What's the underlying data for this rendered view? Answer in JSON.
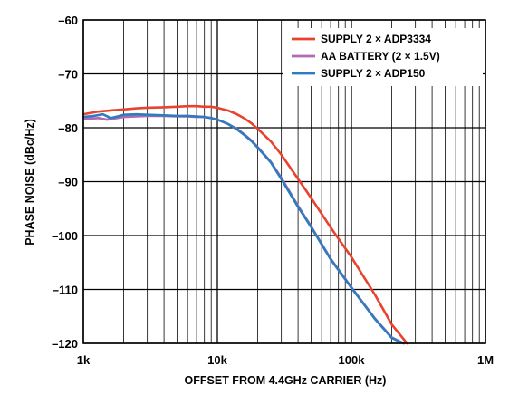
{
  "chart_data": {
    "type": "line",
    "title": "",
    "xlabel": "OFFSET FROM 4.4GHz CARRIER (Hz)",
    "ylabel": "PHASE NOISE (dBc/Hz)",
    "xscale": "log",
    "xlim": [
      1000,
      1000000
    ],
    "ylim": [
      -120,
      -60
    ],
    "grid": true,
    "legend_position": "top-right",
    "x_tick_labels": [
      "1k",
      "10k",
      "100k",
      "1M"
    ],
    "y_tick_labels": [
      "–60",
      "–70",
      "–80",
      "–90",
      "–100",
      "–110",
      "–120"
    ],
    "series": [
      {
        "name": "SUPPLY 2 × ADP3334",
        "color": "#e8432e",
        "x": [
          1000,
          1300,
          1600,
          2000,
          2500,
          3000,
          4000,
          5000,
          6000,
          7000,
          8000,
          9000,
          10000,
          12000,
          14000,
          16000,
          18000,
          20000,
          25000,
          30000,
          40000,
          50000,
          70000,
          100000,
          150000,
          200000,
          260000
        ],
        "y": [
          -77.5,
          -77.0,
          -76.8,
          -76.6,
          -76.4,
          -76.3,
          -76.2,
          -76.1,
          -76.0,
          -76.0,
          -76.1,
          -76.1,
          -76.3,
          -76.8,
          -77.5,
          -78.3,
          -79.2,
          -80.2,
          -82.5,
          -85.0,
          -89.5,
          -93.0,
          -98.5,
          -104.0,
          -111.0,
          -116.5,
          -120.0
        ]
      },
      {
        "name": "AA BATTERY (2 × 1.5V)",
        "color": "#b06ab3",
        "x": [
          1000,
          1300,
          1500,
          1700,
          2000,
          2500,
          3000,
          4000,
          5000,
          6000,
          7000,
          8000,
          9000,
          10000,
          12000,
          14000,
          16000,
          18000,
          20000,
          25000,
          30000,
          40000,
          50000,
          70000,
          100000,
          150000,
          200000,
          245000
        ],
        "y": [
          -78.4,
          -78.2,
          -78.5,
          -78.3,
          -78.0,
          -77.9,
          -77.8,
          -77.8,
          -77.9,
          -77.9,
          -78.0,
          -78.0,
          -78.2,
          -78.5,
          -79.3,
          -80.2,
          -81.3,
          -82.4,
          -83.6,
          -86.3,
          -89.3,
          -94.5,
          -98.3,
          -104.3,
          -109.6,
          -115.4,
          -118.9,
          -120.0
        ]
      },
      {
        "name": "SUPPLY 2 × ADP150",
        "color": "#2e7bbf",
        "x": [
          1000,
          1200,
          1400,
          1600,
          1800,
          2000,
          2500,
          3000,
          4000,
          5000,
          6000,
          7000,
          8000,
          9000,
          10000,
          12000,
          14000,
          16000,
          18000,
          20000,
          25000,
          30000,
          40000,
          50000,
          70000,
          100000,
          150000,
          200000,
          245000
        ],
        "y": [
          -78.0,
          -77.8,
          -77.5,
          -78.2,
          -77.9,
          -77.6,
          -77.5,
          -77.6,
          -77.7,
          -77.8,
          -77.8,
          -77.9,
          -78.0,
          -78.2,
          -78.5,
          -79.3,
          -80.3,
          -81.4,
          -82.5,
          -83.7,
          -86.4,
          -89.5,
          -94.7,
          -98.4,
          -104.4,
          -109.7,
          -115.5,
          -119.0,
          -120.0
        ]
      }
    ]
  }
}
